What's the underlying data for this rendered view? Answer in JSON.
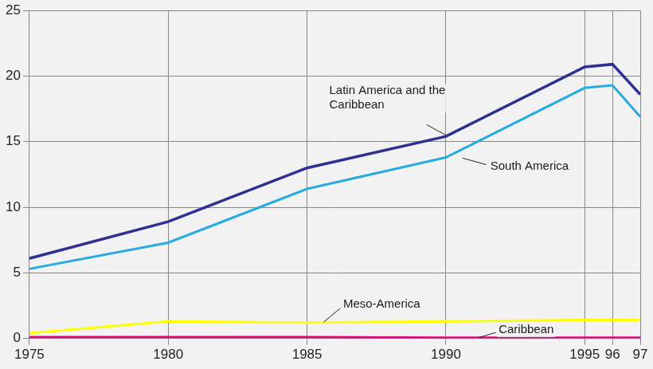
{
  "chart_data": {
    "type": "line",
    "x": [
      1975,
      1980,
      1985,
      1990,
      1995,
      1996,
      1997
    ],
    "series": [
      {
        "name": "Latin America and the Caribbean",
        "color": "#2e3192",
        "values": [
          6.1,
          8.9,
          13.0,
          15.4,
          20.7,
          20.9,
          18.6
        ]
      },
      {
        "name": "South America",
        "color": "#29abe2",
        "values": [
          5.3,
          7.3,
          11.4,
          13.8,
          19.1,
          19.3,
          16.9
        ]
      },
      {
        "name": "Meso-America",
        "color": "#ffff00",
        "values": [
          0.4,
          1.3,
          1.2,
          1.3,
          1.4,
          1.4,
          1.4
        ]
      },
      {
        "name": "Caribbean",
        "color": "#e6007e",
        "values": [
          0.1,
          0.1,
          0.1,
          0.05,
          0.05,
          0.05,
          0.05
        ]
      }
    ],
    "xlim": [
      1975,
      1997
    ],
    "xticks": [
      1975,
      1980,
      1985,
      1990,
      1995,
      {
        "value": 1996,
        "label": "96"
      },
      {
        "value": 1997,
        "label": "97"
      }
    ],
    "ylim": [
      0,
      25
    ],
    "yticks": [
      0,
      5,
      10,
      15,
      20,
      25
    ],
    "grid": true
  }
}
